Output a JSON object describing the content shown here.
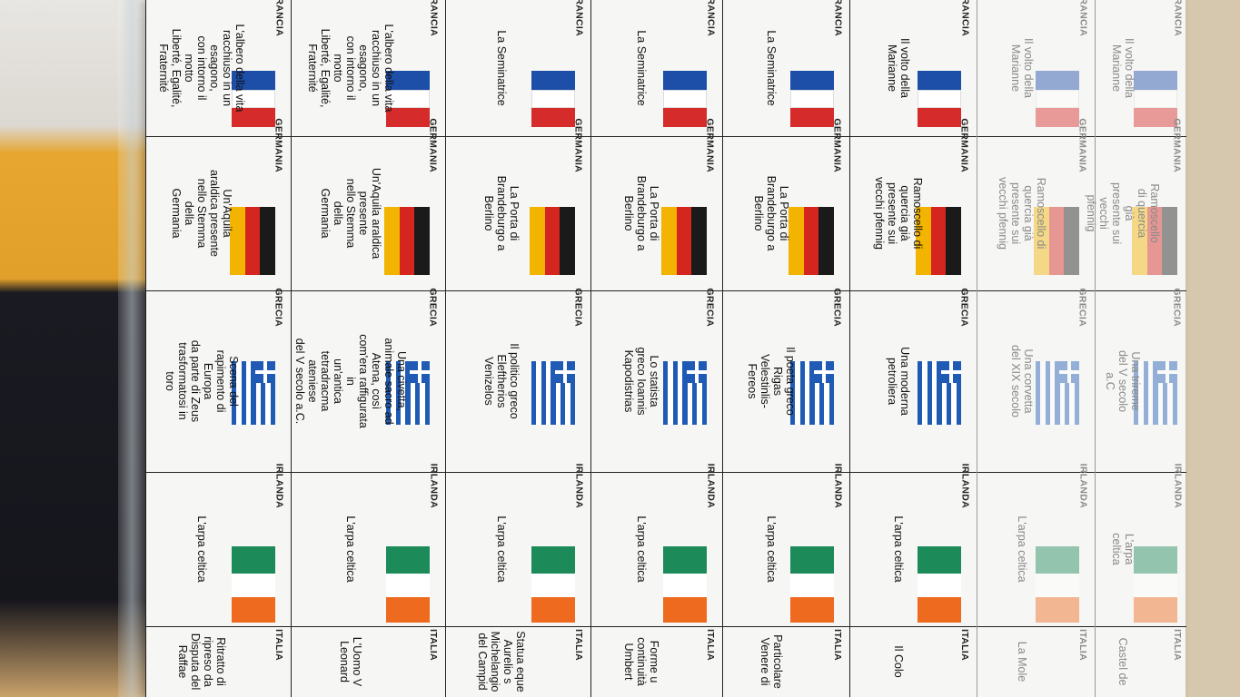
{
  "countries": {
    "fr": "FRANCIA",
    "de": "GERMANIA",
    "gr": "GRECIA",
    "ie": "IRLANDA",
    "it": "ITALIA"
  },
  "colors": {
    "fr_blue": "#1d4ea8",
    "fr_red": "#d62b2b",
    "de_black": "#1a1a1a",
    "de_red": "#d4261f",
    "de_gold": "#f2b400",
    "gr_blue": "#1f5bb5",
    "ie_green": "#1d8a5a",
    "ie_orange": "#ee6a1f"
  },
  "columns": [
    {
      "fr": "L'albero della vita\nracchiuso in un esagono,\ncon intorno il motto\nLiberté, Egalité, Fraternité",
      "de": "Un'Aquila araldica presente\nnello Stemma della\nGermania",
      "gr": "Scena del rapimento di Europa\nda parte di Zeus trasformatosi in\ntoro",
      "ie": "L'arpa celtica",
      "it": "Ritratto di\nripreso da\nDisputa del\nRaffae"
    },
    {
      "fr": "L'albero della vita\nracchiuso in un esagono,\ncon intorno il motto\nLiberté, Egalité, Fraternité",
      "de": "Un'Aquila araldica presente\nnello Stemma della\nGermania",
      "gr": "Una civetta, animale sacro ad\nAtena, così com'era raffigurata in\nun'antica tetradracma ateniese\ndel V secolo a.C.",
      "ie": "L'arpa celtica",
      "it": "L'Uomo V\nLeonard"
    },
    {
      "fr": "La Seminatrice",
      "de": "La Porta di Brandeburgo a\nBerlino",
      "gr": "Il politico greco Eleftherios\nVenizelos",
      "ie": "L'arpa celtica",
      "it": "Statua eque\nAurelio s\nMichelangio\ndel Campid"
    },
    {
      "fr": "La Seminatrice",
      "de": "La Porta di Brandeburgo a\nBerlino",
      "gr": "Lo statista greco Ioannis\nKapodistrias",
      "ie": "L'arpa celtica",
      "it": "Forme u\ncontinuità\nUmbert"
    },
    {
      "fr": "La Seminatrice",
      "de": "La Porta di Brandeburgo a\nBerlino",
      "gr": "Il poeta greco Rigas Velestinlis-\nFereos",
      "ie": "L'arpa celtica",
      "it": "Particolare\nVenere di"
    },
    {
      "fr": "Il volto della Marianne",
      "de": "Ramoscello di quercia già\npresente sui vecchi pfennig",
      "gr": "Una moderna petroliera",
      "ie": "L'arpa celtica",
      "it": "Il Colo"
    },
    {
      "fr": "Il volto della Marianne",
      "de": "Ramoscello di quercia già\npresente sui vecchi pfennig",
      "gr": "Una corvetta del XIX secolo",
      "ie": "L'arpa celtica",
      "it": "La Mole"
    },
    {
      "fr": "Il volto della Marianne",
      "de": "Ramoscello di quercia già\npresente sui vecchi pfennig",
      "gr": "Una trireme del V secolo a.C",
      "ie": "L'arpa celtica",
      "it": "Castel de"
    }
  ]
}
